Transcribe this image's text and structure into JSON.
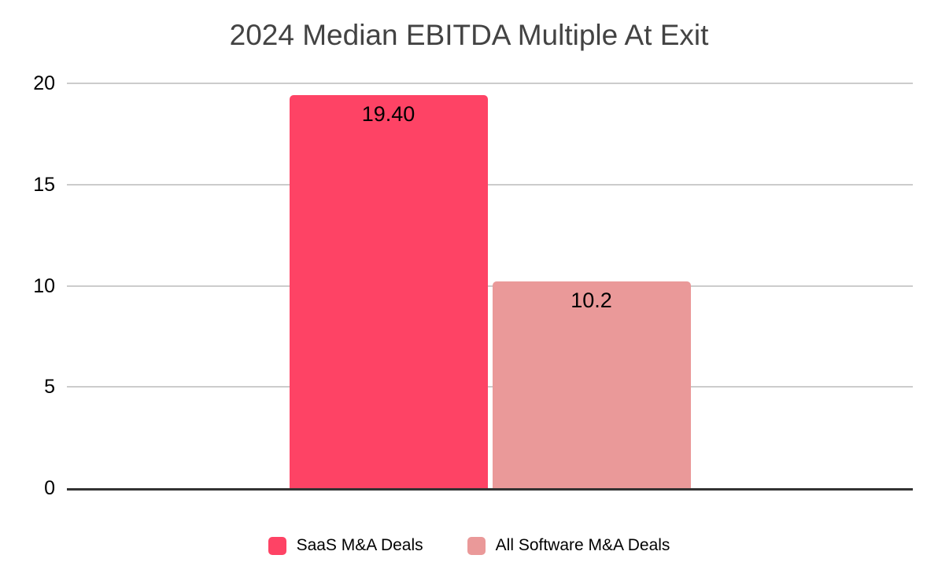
{
  "title": "2024 Median EBITDA Multiple At Exit",
  "colors": {
    "title_text": "#434343",
    "gridline": "#cccccc",
    "axis_line": "#333333",
    "label_text": "#000000",
    "saas_bar": "#FE4365",
    "all_software_bar": "#EA9999"
  },
  "chart_data": {
    "type": "bar",
    "title": "2024 Median EBITDA Multiple At Exit",
    "categories": [
      "SaaS M&A Deals",
      "All Software M&A Deals"
    ],
    "values": [
      19.4,
      10.2
    ],
    "value_labels": [
      "19.40",
      "10.2"
    ],
    "bar_colors": [
      "#FE4365",
      "#EA9999"
    ],
    "xlabel": "",
    "ylabel": "",
    "ylim": [
      0,
      20
    ],
    "yticks": [
      0,
      5,
      10,
      15,
      20
    ],
    "ytick_labels": [
      "0",
      "5",
      "10",
      "15",
      "20"
    ],
    "grid": true,
    "legend_position": "bottom",
    "legend": [
      {
        "label": "SaaS M&A Deals",
        "color": "#FE4365"
      },
      {
        "label": "All Software M&A Deals",
        "color": "#EA9999"
      }
    ]
  }
}
